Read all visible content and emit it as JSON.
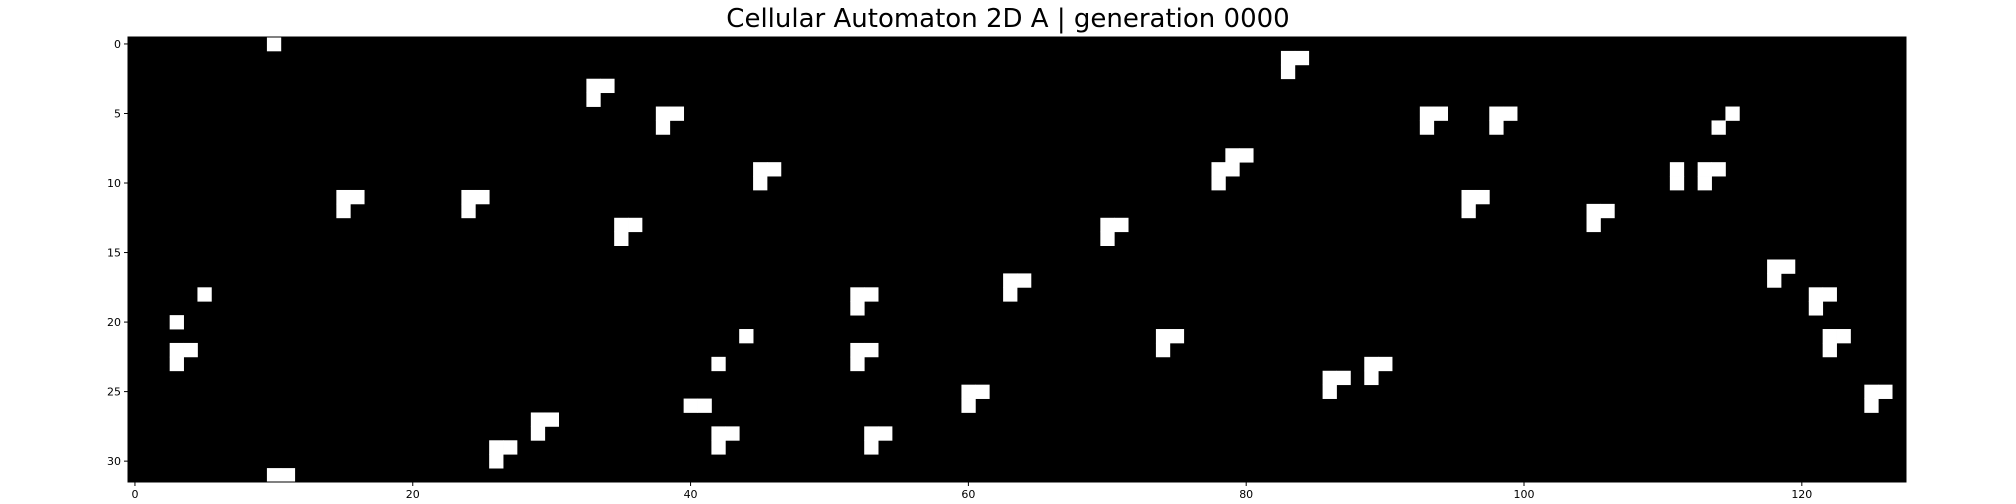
{
  "chart_data": {
    "type": "heatmap",
    "title": "Cellular Automaton 2D A | generation 0000",
    "xlabel": "",
    "ylabel": "",
    "rows": 32,
    "cols": 128,
    "xlim": [
      -0.5,
      127.5
    ],
    "ylim": [
      31.5,
      -0.5
    ],
    "x_ticks": [
      0,
      20,
      40,
      60,
      80,
      100,
      120
    ],
    "y_ticks": [
      0,
      5,
      10,
      15,
      20,
      25,
      30
    ],
    "grid": false,
    "colors": {
      "dead": "#000000",
      "alive": "#ffffff"
    },
    "alive_cells": [
      [
        0,
        10
      ],
      [
        1,
        83
      ],
      [
        1,
        84
      ],
      [
        2,
        83
      ],
      [
        3,
        33
      ],
      [
        3,
        34
      ],
      [
        4,
        33
      ],
      [
        5,
        38
      ],
      [
        5,
        39
      ],
      [
        5,
        93
      ],
      [
        5,
        94
      ],
      [
        5,
        98
      ],
      [
        5,
        99
      ],
      [
        5,
        115
      ],
      [
        6,
        38
      ],
      [
        6,
        93
      ],
      [
        6,
        98
      ],
      [
        6,
        114
      ],
      [
        8,
        79
      ],
      [
        8,
        80
      ],
      [
        9,
        45
      ],
      [
        9,
        46
      ],
      [
        9,
        78
      ],
      [
        9,
        79
      ],
      [
        9,
        111
      ],
      [
        9,
        113
      ],
      [
        9,
        114
      ],
      [
        10,
        45
      ],
      [
        10,
        78
      ],
      [
        10,
        111
      ],
      [
        10,
        113
      ],
      [
        11,
        15
      ],
      [
        11,
        16
      ],
      [
        11,
        24
      ],
      [
        11,
        25
      ],
      [
        11,
        96
      ],
      [
        11,
        97
      ],
      [
        12,
        15
      ],
      [
        12,
        24
      ],
      [
        12,
        96
      ],
      [
        12,
        105
      ],
      [
        12,
        106
      ],
      [
        13,
        35
      ],
      [
        13,
        36
      ],
      [
        13,
        70
      ],
      [
        13,
        71
      ],
      [
        13,
        105
      ],
      [
        14,
        35
      ],
      [
        14,
        70
      ],
      [
        16,
        118
      ],
      [
        16,
        119
      ],
      [
        17,
        63
      ],
      [
        17,
        64
      ],
      [
        17,
        118
      ],
      [
        18,
        5
      ],
      [
        18,
        52
      ],
      [
        18,
        53
      ],
      [
        18,
        63
      ],
      [
        18,
        121
      ],
      [
        18,
        122
      ],
      [
        19,
        52
      ],
      [
        19,
        121
      ],
      [
        20,
        3
      ],
      [
        21,
        44
      ],
      [
        21,
        74
      ],
      [
        21,
        75
      ],
      [
        21,
        122
      ],
      [
        21,
        123
      ],
      [
        22,
        3
      ],
      [
        22,
        4
      ],
      [
        22,
        52
      ],
      [
        22,
        53
      ],
      [
        22,
        74
      ],
      [
        22,
        122
      ],
      [
        23,
        3
      ],
      [
        23,
        42
      ],
      [
        23,
        52
      ],
      [
        23,
        89
      ],
      [
        23,
        90
      ],
      [
        24,
        86
      ],
      [
        24,
        87
      ],
      [
        24,
        89
      ],
      [
        25,
        60
      ],
      [
        25,
        61
      ],
      [
        25,
        86
      ],
      [
        25,
        125
      ],
      [
        25,
        126
      ],
      [
        26,
        40
      ],
      [
        26,
        41
      ],
      [
        26,
        60
      ],
      [
        26,
        125
      ],
      [
        27,
        29
      ],
      [
        27,
        30
      ],
      [
        28,
        29
      ],
      [
        28,
        42
      ],
      [
        28,
        43
      ],
      [
        28,
        53
      ],
      [
        28,
        54
      ],
      [
        29,
        26
      ],
      [
        29,
        27
      ],
      [
        29,
        42
      ],
      [
        29,
        53
      ],
      [
        30,
        26
      ],
      [
        31,
        10
      ],
      [
        31,
        11
      ]
    ]
  }
}
